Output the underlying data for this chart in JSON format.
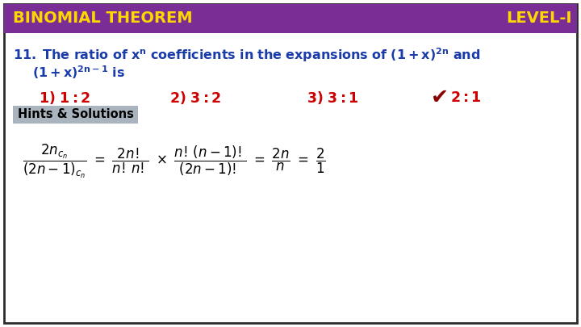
{
  "bg_color": "#ffffff",
  "outer_border_color": "#2b2b2b",
  "header_bg_color": "#7B2D96",
  "header_text_left": "BINOMIAL THEOREM",
  "header_text_right": "LEVEL-I",
  "header_text_color": "#FFD700",
  "question_color": "#1a3caa",
  "options_color": "#cc0000",
  "hints_bg_color": "#aab4be",
  "hints_text": "Hints & Solutions",
  "hints_text_color": "#000000",
  "formula_color": "#000000",
  "checkmark_color": "#8B0000"
}
